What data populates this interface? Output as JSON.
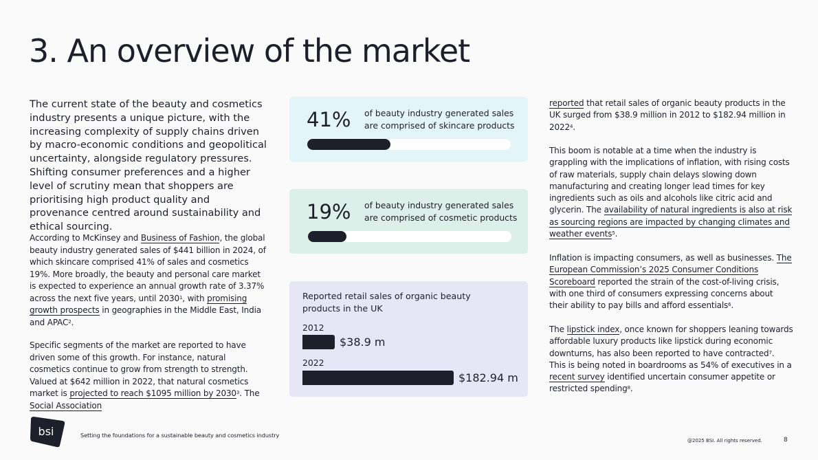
{
  "page": {
    "title": "3. An overview of the market",
    "intro": "The current state of the beauty and cosmetics industry presents a unique picture, with the increasing complexity of supply chains driven by macro-economic conditions and geopolitical uncertainty, alongside regulatory pressures. Shifting consumer preferences and a higher level of scrutiny mean that shoppers are prioritising high product quality and provenance centred around sustainability and ethical sourcing."
  },
  "left_col": {
    "p1": {
      "t1": "According to McKinsey and ",
      "link1": "Business of Fashion",
      "t2": ", the global beauty industry generated sales of $441 billion in 2024, of which skincare comprised 41% of sales and cosmetics 19%. More broadly, the beauty and personal care market is expected to experience an annual growth rate of 3.37% across the next five years, until 2030",
      "sup1": "1",
      "t3": ", with ",
      "link2": "promising growth prospects",
      "t4": " in geographies in the Middle East, India and APAC",
      "sup2": "2",
      "t5": "."
    },
    "p2": {
      "t1": "Specific segments of the market are reported to have driven some of this growth. For instance, natural cosmetics continue to grow from strength to strength. Valued at $642 million in 2022, that natural cosmetics market is ",
      "link1": "projected to reach $1095 million by 2030",
      "sup1": "3",
      "t2": ". The ",
      "link2": "Social Association"
    }
  },
  "stats": [
    {
      "pct": "41%",
      "value": 0.41,
      "desc": "of beauty industry generated sales are comprised of skincare products"
    },
    {
      "pct": "19%",
      "value": 0.19,
      "desc": "of beauty industry generated sales are comprised of cosmetic products"
    }
  ],
  "chart_data": {
    "type": "bar",
    "orientation": "horizontal",
    "title": "Reported retail sales of organic beauty products in the UK",
    "categories": [
      "2012",
      "2022"
    ],
    "values": [
      38.9,
      182.94
    ],
    "value_labels": [
      "$38.9 m",
      "$182.94 m"
    ],
    "unit": "$ million",
    "xlim": [
      0,
      182.94
    ]
  },
  "right_col": {
    "p1": {
      "link1": "reported",
      "t1": " that retail sales of organic beauty products in the UK surged from $38.9 million in 2012 to $182.94 million in 2022",
      "sup1": "4",
      "t2": "."
    },
    "p2": {
      "t1": "This boom is notable at a time when the industry is grappling with the implications of inflation, with rising costs of raw materials, supply chain delays slowing down manufacturing and creating longer lead times for key ingredients such as oils and alcohols like citric acid and glycerin. The ",
      "link1": "availability of natural ingredients is also at risk as sourcing regions are impacted by changing climates and weather events",
      "sup1": "5",
      "t2": "."
    },
    "p3": {
      "t1": "Inflation is impacting consumers, as well as businesses. ",
      "link1": "The European Commission’s 2025 Consumer Conditions Scoreboard",
      "t2": " reported the strain of the cost-of-living crisis, with one third of consumers expressing concerns about their ability to pay bills and afford essentials",
      "sup1": "6",
      "t3": "."
    },
    "p4": {
      "t1": "The ",
      "link1": "lipstick index",
      "t2": ", once known for shoppers leaning towards affordable luxury products like lipstick during economic downturns, has also been reported to have contracted",
      "sup1": "7",
      "t3": ". This is being noted in boardrooms as 54% of executives in a ",
      "link2": "recent survey",
      "t4": " identified uncertain consumer appetite or restricted spending",
      "sup2": "8",
      "t5": "."
    }
  },
  "footer": {
    "logo_text": "bsi",
    "tagline": "Setting the foundations for a sustainable beauty and cosmetics industry",
    "copyright": "@2025 BSI. All rights reserved.",
    "page_number": "8"
  },
  "colors": {
    "text": "#1d1f2a",
    "background": "#fafafa",
    "card_skincare": "#e4f5fa",
    "card_cosmetics": "#dcefe9",
    "card_chart": "#e6e7f6",
    "bar": "#1d1f2a",
    "bar_track": "#ffffff"
  }
}
